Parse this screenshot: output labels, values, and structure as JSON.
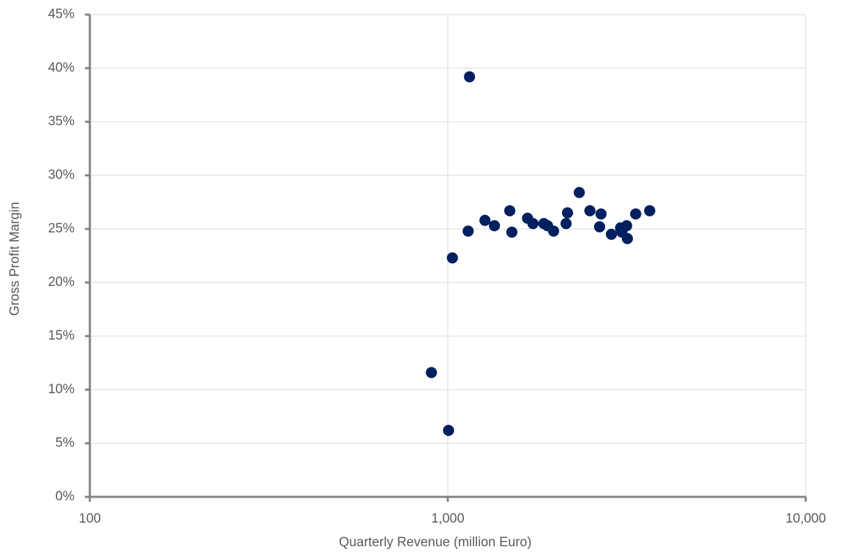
{
  "chart_data": {
    "type": "scatter",
    "x_label": "Quarterly Revenue (million Euro)",
    "y_label": "Gross Profit Margin",
    "x_log": true,
    "grid": true,
    "xlim": [
      100,
      10000
    ],
    "xticks": [
      100,
      {
        "value": 1000,
        "label": "1,000"
      },
      {
        "value": 10000,
        "label": "10,000"
      }
    ],
    "ylim": [
      0,
      45
    ],
    "yticks": [
      {
        "value": 0,
        "label": "0%"
      },
      {
        "value": 5,
        "label": "5%"
      },
      {
        "value": 10,
        "label": "10%"
      },
      {
        "value": 15,
        "label": "15%"
      },
      {
        "value": 20,
        "label": "20%"
      },
      {
        "value": 25,
        "label": "25%"
      },
      {
        "value": 30,
        "label": "30%"
      },
      {
        "value": 35,
        "label": "35%"
      },
      {
        "value": 40,
        "label": "40%"
      },
      {
        "value": 45,
        "label": "45%"
      }
    ],
    "color": "#002060",
    "x": [
      1150,
      1030,
      1140,
      900,
      1005,
      1270,
      1350,
      1490,
      1510,
      1670,
      1730,
      1855,
      1900,
      1975,
      2140,
      2160,
      2330,
      2495,
      2655,
      2680,
      2865,
      3040,
      3065,
      3160,
      3175,
      3350,
      3665
    ],
    "values": [
      39.2,
      22.3,
      24.8,
      11.6,
      6.2,
      25.8,
      25.3,
      26.7,
      24.7,
      26.0,
      25.5,
      25.5,
      25.3,
      24.8,
      25.5,
      26.5,
      28.4,
      26.7,
      25.2,
      26.4,
      24.5,
      25.1,
      24.7,
      25.3,
      24.1,
      26.4,
      26.7
    ]
  }
}
